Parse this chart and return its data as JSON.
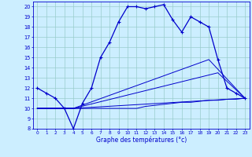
{
  "xlabel": "Graphe des températures (°c)",
  "bg_color": "#cceeff",
  "line_color": "#0000cc",
  "grid_color": "#99cccc",
  "xlim": [
    -0.5,
    23.5
  ],
  "ylim": [
    8,
    20.5
  ],
  "xticks": [
    0,
    1,
    2,
    3,
    4,
    5,
    6,
    7,
    8,
    9,
    10,
    11,
    12,
    13,
    14,
    15,
    16,
    17,
    18,
    19,
    20,
    21,
    22,
    23
  ],
  "yticks": [
    8,
    9,
    10,
    11,
    12,
    13,
    14,
    15,
    16,
    17,
    18,
    19,
    20
  ],
  "line1_x": [
    0,
    1,
    2,
    3,
    4,
    5,
    6,
    7,
    8,
    9,
    10,
    11,
    12,
    13,
    14,
    15,
    16,
    17,
    18,
    19,
    20,
    21,
    22,
    23
  ],
  "line1_y": [
    12,
    11.5,
    11,
    10,
    8,
    10.5,
    12,
    15,
    16.5,
    18.5,
    20,
    20,
    19.8,
    20,
    20.2,
    18.7,
    17.5,
    19,
    18.5,
    18,
    14.8,
    12,
    11.5,
    11
  ],
  "line2_x": [
    0,
    1,
    2,
    3,
    4,
    5,
    6,
    7,
    8,
    9,
    10,
    11,
    12,
    13,
    14,
    15,
    16,
    17,
    18,
    19,
    20,
    21,
    22,
    23
  ],
  "line2_y": [
    10,
    10,
    10,
    10,
    10,
    10,
    10,
    10,
    10,
    10,
    10,
    10,
    10.2,
    10.3,
    10.4,
    10.5,
    10.6,
    10.6,
    10.7,
    10.8,
    10.8,
    10.9,
    10.9,
    11
  ],
  "line3_x": [
    0,
    4,
    23
  ],
  "line3_y": [
    10,
    10,
    11
  ],
  "line4_x": [
    0,
    4,
    20,
    23
  ],
  "line4_y": [
    10,
    10,
    13.5,
    11
  ],
  "line5_x": [
    0,
    4,
    19,
    23
  ],
  "line5_y": [
    10,
    10,
    14.8,
    11
  ]
}
